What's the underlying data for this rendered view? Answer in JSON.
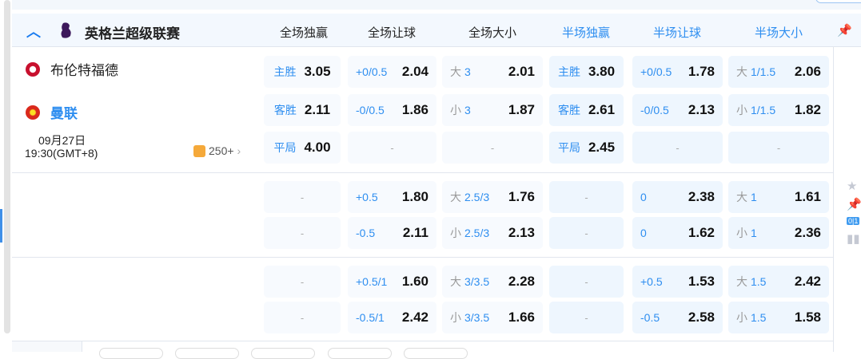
{
  "league": {
    "name": "英格兰超级联赛",
    "icon": "premier-league-logo"
  },
  "columns": [
    {
      "label": "全场独赢",
      "half": false
    },
    {
      "label": "全场让球",
      "half": false
    },
    {
      "label": "全场大小",
      "half": false
    },
    {
      "label": "半场独赢",
      "half": true
    },
    {
      "label": "半场让球",
      "half": true
    },
    {
      "label": "半场大小",
      "half": true
    }
  ],
  "match": {
    "home": "布伦特福德",
    "away": "曼联",
    "date": "09月27日",
    "time": "19:30(GMT+8)",
    "more_count": "250+"
  },
  "colors": {
    "accent": "#2e8ef0",
    "cell_bg": "#f7fafe",
    "half_cell_bg": "#eef6fe"
  },
  "sections": [
    {
      "rows": [
        [
          {
            "hc": "主胜",
            "od": "3.05",
            "w": 1
          },
          {
            "hc": "+0/0.5",
            "od": "2.04"
          },
          {
            "pre": "大",
            "hc": "3",
            "od": "2.01"
          },
          {
            "hc": "主胜",
            "od": "3.80",
            "w": 1
          },
          {
            "hc": "+0/0.5",
            "od": "1.78"
          },
          {
            "pre": "大",
            "hc": "1/1.5",
            "od": "2.06"
          }
        ],
        [
          {
            "hc": "客胜",
            "od": "2.11",
            "w": 1
          },
          {
            "hc": "-0/0.5",
            "od": "1.86"
          },
          {
            "pre": "小",
            "hc": "3",
            "od": "1.87"
          },
          {
            "hc": "客胜",
            "od": "2.61",
            "w": 1
          },
          {
            "hc": "-0/0.5",
            "od": "2.13"
          },
          {
            "pre": "小",
            "hc": "1/1.5",
            "od": "1.82"
          }
        ],
        [
          {
            "hc": "平局",
            "od": "4.00",
            "w": 1
          },
          {
            "dash": "-"
          },
          {
            "dash": "-"
          },
          {
            "hc": "平局",
            "od": "2.45",
            "w": 1
          },
          {
            "dash": "-"
          },
          {
            "dash": "-"
          }
        ]
      ]
    },
    {
      "rows": [
        [
          {
            "dash": "-"
          },
          {
            "hc": "+0.5",
            "od": "1.80"
          },
          {
            "pre": "大",
            "hc": "2.5/3",
            "od": "1.76"
          },
          {
            "dash": "-"
          },
          {
            "hc": "0",
            "od": "2.38"
          },
          {
            "pre": "大",
            "hc": "1",
            "od": "1.61"
          }
        ],
        [
          {
            "dash": "-"
          },
          {
            "hc": "-0.5",
            "od": "2.11"
          },
          {
            "pre": "小",
            "hc": "2.5/3",
            "od": "2.13"
          },
          {
            "dash": "-"
          },
          {
            "hc": "0",
            "od": "1.62"
          },
          {
            "pre": "小",
            "hc": "1",
            "od": "2.36"
          }
        ]
      ]
    },
    {
      "rows": [
        [
          {
            "dash": "-"
          },
          {
            "hc": "+0.5/1",
            "od": "1.60"
          },
          {
            "pre": "大",
            "hc": "3/3.5",
            "od": "2.28"
          },
          {
            "dash": "-"
          },
          {
            "hc": "+0.5",
            "od": "1.53"
          },
          {
            "pre": "大",
            "hc": "1.5",
            "od": "2.42"
          }
        ],
        [
          {
            "dash": "-"
          },
          {
            "hc": "-0.5/1",
            "od": "2.42"
          },
          {
            "pre": "小",
            "hc": "3/3.5",
            "od": "1.66"
          },
          {
            "dash": "-"
          },
          {
            "hc": "-0.5",
            "od": "2.58"
          },
          {
            "pre": "小",
            "hc": "1.5",
            "od": "1.58"
          }
        ]
      ]
    }
  ],
  "side_icons": [
    "star-icon",
    "pin-icon",
    "score-icon",
    "stats-icon"
  ],
  "score_badge": "0|1"
}
